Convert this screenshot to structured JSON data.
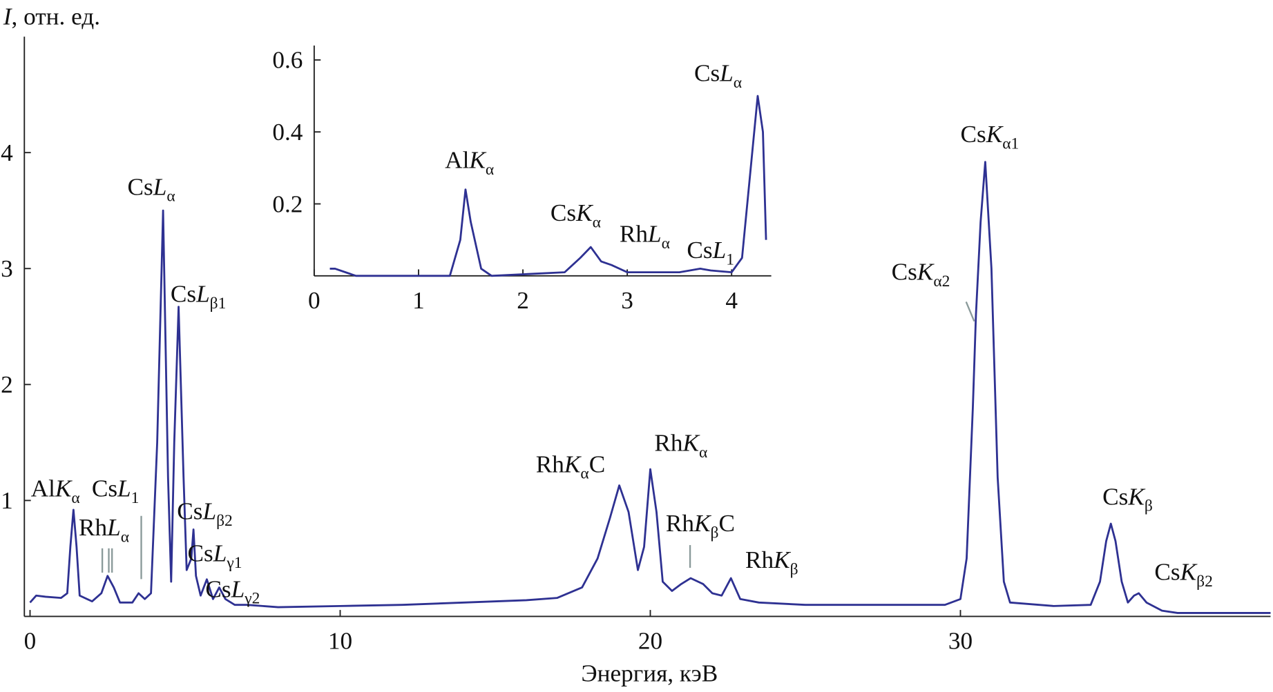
{
  "chart_data": [
    {
      "type": "line",
      "color": "#2e3192",
      "y_label": [
        "I",
        ", отн. ед."
      ],
      "x_label": "Энергия, кэВ",
      "xlim": [
        0,
        40
      ],
      "ylim": [
        0,
        5
      ],
      "xticks": [
        0,
        10,
        20,
        30
      ],
      "yticks": [
        1,
        2,
        3,
        4
      ],
      "x": [
        0,
        0.2,
        0.5,
        1.0,
        1.2,
        1.3,
        1.4,
        1.5,
        1.6,
        2.0,
        2.3,
        2.5,
        2.7,
        2.9,
        3.3,
        3.5,
        3.7,
        3.9,
        4.1,
        4.29,
        4.45,
        4.55,
        4.65,
        4.79,
        4.95,
        5.05,
        5.2,
        5.27,
        5.35,
        5.5,
        5.7,
        5.9,
        6.1,
        6.3,
        6.6,
        7,
        8,
        10,
        12,
        14,
        16,
        17,
        17.8,
        18.3,
        18.7,
        19.0,
        19.3,
        19.6,
        19.8,
        20.0,
        20.2,
        20.4,
        20.7,
        21.0,
        21.3,
        21.7,
        22.0,
        22.3,
        22.6,
        22.9,
        23.5,
        25,
        28,
        29.5,
        30.0,
        30.2,
        30.4,
        30.5,
        30.65,
        30.8,
        31.0,
        31.2,
        31.4,
        31.6,
        33,
        34.2,
        34.5,
        34.7,
        34.85,
        35.0,
        35.2,
        35.4,
        35.6,
        35.75,
        36,
        36.5,
        37,
        40
      ],
      "values": [
        0.12,
        0.18,
        0.17,
        0.16,
        0.2,
        0.6,
        0.92,
        0.6,
        0.18,
        0.13,
        0.2,
        0.35,
        0.25,
        0.12,
        0.12,
        0.2,
        0.15,
        0.2,
        1.5,
        3.5,
        1.2,
        0.3,
        1.5,
        2.67,
        1.2,
        0.4,
        0.5,
        0.75,
        0.35,
        0.18,
        0.32,
        0.15,
        0.25,
        0.15,
        0.1,
        0.1,
        0.08,
        0.09,
        0.1,
        0.12,
        0.14,
        0.16,
        0.25,
        0.5,
        0.85,
        1.13,
        0.9,
        0.4,
        0.6,
        1.27,
        0.9,
        0.3,
        0.22,
        0.28,
        0.33,
        0.28,
        0.2,
        0.18,
        0.33,
        0.15,
        0.12,
        0.1,
        0.1,
        0.1,
        0.15,
        0.5,
        1.8,
        2.6,
        3.4,
        3.92,
        3.0,
        1.2,
        0.3,
        0.12,
        0.09,
        0.1,
        0.3,
        0.65,
        0.8,
        0.65,
        0.3,
        0.12,
        0.18,
        0.2,
        0.12,
        0.05,
        0.03,
        0.03
      ],
      "annotations": [
        [
          "Al",
          "K",
          "α"
        ],
        [
          "Cs",
          "L",
          "1"
        ],
        [
          "Rh",
          "L",
          "α"
        ],
        [
          "Cs",
          "L",
          "α"
        ],
        [
          "Cs",
          "L",
          "β1"
        ],
        [
          "Cs",
          "L",
          "β2"
        ],
        [
          "Cs",
          "L",
          "γ1"
        ],
        [
          "Cs",
          "L",
          "γ2"
        ],
        [
          "Rh",
          "K",
          "α",
          "C"
        ],
        [
          "Rh",
          "K",
          "α"
        ],
        [
          "Rh",
          "K",
          "β",
          "C"
        ],
        [
          "Rh",
          "K",
          "β"
        ],
        [
          "Cs",
          "K",
          "α1"
        ],
        [
          "Cs",
          "K",
          "α2"
        ],
        [
          "Cs",
          "K",
          "β"
        ],
        [
          "Cs",
          "K",
          "β2"
        ]
      ]
    },
    {
      "type": "line",
      "color": "#2e3192",
      "xlim": [
        0,
        4.38
      ],
      "ylim": [
        0,
        0.64
      ],
      "xticks": [
        0,
        1,
        2,
        3,
        4
      ],
      "yticks": [
        0.2,
        0.4,
        0.6
      ],
      "x": [
        0.15,
        0.2,
        0.3,
        0.4,
        1.3,
        1.4,
        1.45,
        1.5,
        1.6,
        1.7,
        2.4,
        2.55,
        2.65,
        2.75,
        2.85,
        3.0,
        3.5,
        3.7,
        3.8,
        4.0,
        4.1,
        4.2,
        4.25,
        4.3,
        4.33
      ],
      "values": [
        0.02,
        0.02,
        0.01,
        0,
        0,
        0.1,
        0.24,
        0.15,
        0.02,
        0,
        0.01,
        0.05,
        0.08,
        0.04,
        0.03,
        0.01,
        0.01,
        0.02,
        0.015,
        0.01,
        0.05,
        0.35,
        0.5,
        0.4,
        0.1
      ],
      "annotations": [
        [
          "Al",
          "K",
          "α"
        ],
        [
          "Cs",
          "K",
          "α"
        ],
        [
          "Rh",
          "L",
          "α"
        ],
        [
          "Cs",
          "L",
          "1"
        ],
        [
          "Cs",
          "L",
          "α"
        ]
      ]
    }
  ]
}
